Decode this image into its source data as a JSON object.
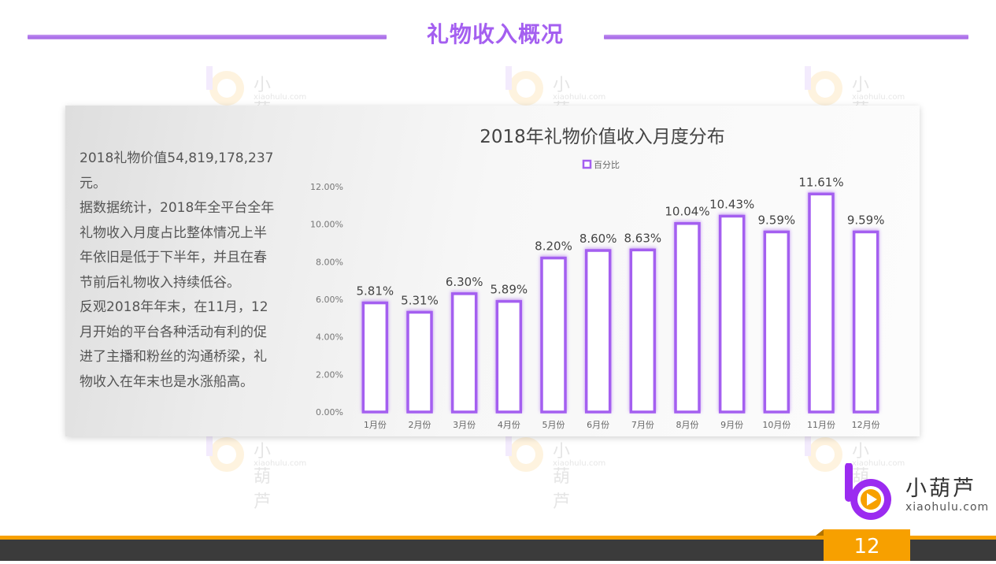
{
  "page": {
    "title": "礼物收入概况",
    "page_number": "12"
  },
  "watermark": {
    "name": "小葫芦",
    "url": "xiaohulu.com"
  },
  "description": "2018礼物价值54,819,178,237\n元。\n据数据统计，2018年全平台全年\n礼物收入月度占比整体情况上半\n年依旧是低于下半年，并且在春\n节前后礼物收入持续低谷。\n反观2018年年末，在11月，12\n月开始的平台各种活动有利的促\n进了主播和粉丝的沟通桥梁，礼\n物收入在年末也是水涨船高。",
  "brand": {
    "name": "小葫芦",
    "url": "xiaohulu.com",
    "accent": "#a45ff0",
    "orange": "#f7a000"
  },
  "chart_data": {
    "type": "bar",
    "title": "2018年礼物价值收入月度分布",
    "legend": [
      "百分比"
    ],
    "legend_position": "top-center",
    "categories": [
      "1月份",
      "2月份",
      "3月份",
      "4月份",
      "5月份",
      "6月份",
      "7月份",
      "8月份",
      "9月份",
      "10月份",
      "11月份",
      "12月份"
    ],
    "values": [
      5.81,
      5.31,
      6.3,
      5.89,
      8.2,
      8.6,
      8.63,
      10.04,
      10.43,
      9.59,
      11.61,
      9.59
    ],
    "data_labels": [
      "5.81%",
      "5.31%",
      "6.30%",
      "5.89%",
      "8.20%",
      "8.60%",
      "8.63%",
      "10.04%",
      "10.43%",
      "9.59%",
      "11.61%",
      "9.59%"
    ],
    "yticks": [
      "0.00%",
      "2.00%",
      "4.00%",
      "6.00%",
      "8.00%",
      "10.00%",
      "12.00%"
    ],
    "ylim": [
      0,
      12
    ],
    "xlabel": "",
    "ylabel": "",
    "grid": false,
    "colors": {
      "bar_border": "#a45ff0",
      "bar_fill": "#ffffff"
    }
  }
}
